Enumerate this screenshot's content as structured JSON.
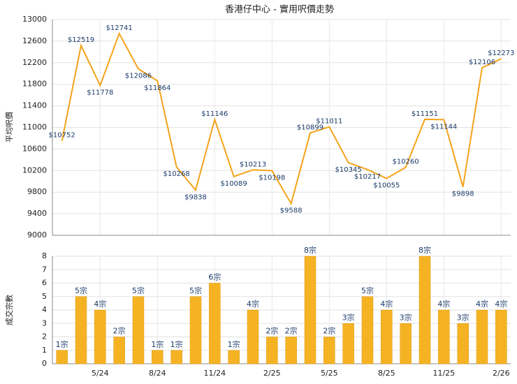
{
  "chart_data": [
    {
      "type": "line",
      "title": "香港仔中心 - 實用呎價走勢",
      "ylabel": "平均呎價",
      "color": "#f5a31a",
      "categories": [
        null,
        null,
        null,
        null,
        null,
        null,
        null,
        null,
        null,
        null,
        null,
        null,
        null,
        null,
        null,
        null,
        null,
        null,
        null,
        null,
        null,
        null,
        null,
        null
      ],
      "values": [
        10752,
        12519,
        11778,
        12741,
        12086,
        11864,
        10268,
        9838,
        11146,
        10089,
        10213,
        10198,
        9588,
        10899,
        11011,
        10345,
        10217,
        10055,
        10260,
        11151,
        11144,
        9898,
        12106,
        12273
      ],
      "value_labels": [
        "$10752",
        "$12519",
        "$11778",
        "$12741",
        "$12086",
        "$11864",
        "$10268",
        "$9838",
        "$11146",
        "$10089",
        "$10213",
        "$10198",
        "$9588",
        "$10899",
        "$11011",
        "$10345",
        "$10217",
        "$10055",
        "$10260",
        "$11151",
        "$11144",
        "$9898",
        "$12106",
        "$12273"
      ],
      "ylim": [
        9000,
        13000
      ],
      "yticks": [
        9000,
        9400,
        9800,
        10200,
        10600,
        11000,
        11400,
        11800,
        12200,
        12600,
        13000
      ],
      "grid": true
    },
    {
      "type": "bar",
      "ylabel": "成交宗數",
      "color": "#f5b324",
      "categories": [
        null,
        null,
        "5/24",
        null,
        null,
        "8/24",
        null,
        null,
        "11/24",
        null,
        null,
        "2/25",
        null,
        null,
        "5/25",
        null,
        null,
        "8/25",
        null,
        null,
        "11/25",
        null,
        null,
        "2/26"
      ],
      "values": [
        1,
        5,
        4,
        2,
        5,
        1,
        1,
        5,
        6,
        1,
        4,
        2,
        2,
        8,
        2,
        3,
        5,
        4,
        3,
        8,
        4,
        3,
        4,
        4
      ],
      "value_labels": [
        "1宗",
        "5宗",
        "4宗",
        "2宗",
        "5宗",
        "1宗",
        "1宗",
        "5宗",
        "6宗",
        "1宗",
        "4宗",
        "2宗",
        "2宗",
        "8宗",
        "2宗",
        "3宗",
        "5宗",
        "4宗",
        "3宗",
        "8宗",
        "4宗",
        "3宗",
        "4宗",
        "4宗"
      ],
      "ylim": [
        0,
        8
      ],
      "yticks": [
        0,
        1,
        2,
        3,
        4,
        5,
        6,
        7,
        8
      ],
      "grid": true
    }
  ]
}
